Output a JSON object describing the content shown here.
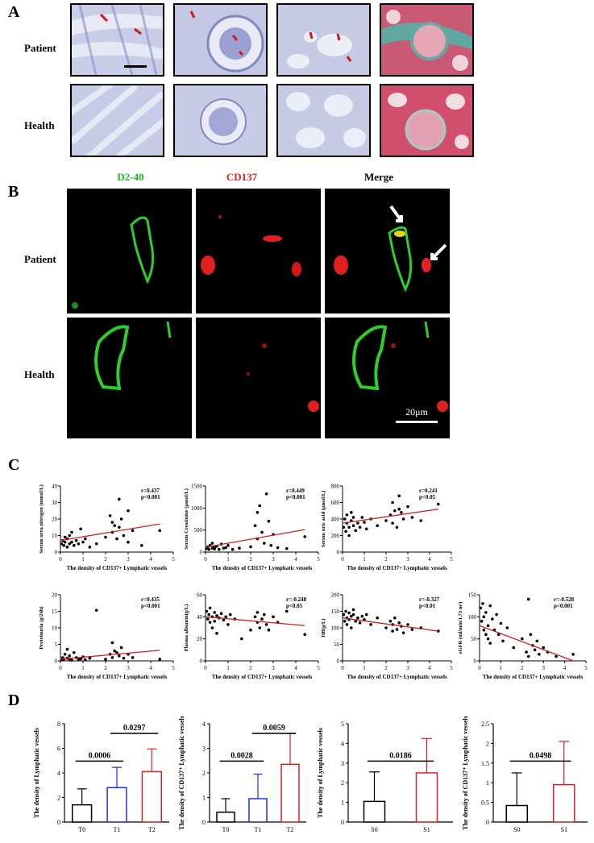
{
  "panel_a": {
    "label": "A",
    "rows": [
      "Patient",
      "Health"
    ]
  },
  "panel_b": {
    "label": "B",
    "columns": [
      {
        "text": "D2-40",
        "color": "#1db51d"
      },
      {
        "text": "CD137",
        "color": "#e01f1f"
      },
      {
        "text": "Merge",
        "color": "#000000"
      }
    ],
    "rows": [
      "Patient",
      "Health"
    ],
    "scale_bar": "20μm"
  },
  "panel_c": {
    "label": "C"
  },
  "panel_d": {
    "label": "D"
  },
  "chart_data": [
    {
      "id": "c1",
      "type": "scatter",
      "ylabel": "Serum urea nitrogen (mmol/L)",
      "xlabel": "The density of CD137+ Lymphatic vessels",
      "xlim": [
        0,
        5
      ],
      "ylim": [
        0,
        40
      ],
      "xticks": [
        0,
        1,
        2,
        3,
        4,
        5
      ],
      "yticks": [
        0,
        10,
        20,
        30,
        40
      ],
      "annotation": [
        "r=0.437",
        "p<0.001"
      ],
      "fit": [
        [
          0,
          7
        ],
        [
          4.4,
          17
        ]
      ],
      "points": [
        [
          0.05,
          5
        ],
        [
          0.1,
          7
        ],
        [
          0.15,
          4
        ],
        [
          0.2,
          9
        ],
        [
          0.2,
          6
        ],
        [
          0.3,
          8
        ],
        [
          0.3,
          3
        ],
        [
          0.4,
          5
        ],
        [
          0.4,
          10
        ],
        [
          0.5,
          6
        ],
        [
          0.5,
          12
        ],
        [
          0.6,
          4
        ],
        [
          0.7,
          7
        ],
        [
          0.8,
          5
        ],
        [
          0.9,
          14
        ],
        [
          1.0,
          6
        ],
        [
          1.1,
          8
        ],
        [
          1.3,
          3
        ],
        [
          1.6,
          5
        ],
        [
          2.0,
          9
        ],
        [
          2.2,
          22
        ],
        [
          2.3,
          18
        ],
        [
          2.3,
          12
        ],
        [
          2.4,
          16
        ],
        [
          2.5,
          8
        ],
        [
          2.6,
          15
        ],
        [
          2.6,
          32
        ],
        [
          2.7,
          20
        ],
        [
          2.8,
          10
        ],
        [
          3.0,
          25
        ],
        [
          3.0,
          6
        ],
        [
          3.2,
          13
        ],
        [
          3.6,
          4
        ],
        [
          4.4,
          13
        ]
      ]
    },
    {
      "id": "c2",
      "type": "scatter",
      "ylabel": "Serum Creatinine (μmol/L)",
      "xlabel": "The density of CD137+ Lymphatic vessels",
      "xlim": [
        0,
        5
      ],
      "ylim": [
        0,
        1500
      ],
      "xticks": [
        0,
        1,
        2,
        3,
        4,
        5
      ],
      "yticks": [
        0,
        500,
        1000,
        1500
      ],
      "annotation": [
        "r=0.449",
        "p<0.001"
      ],
      "fit": [
        [
          0,
          110
        ],
        [
          4.4,
          510
        ]
      ],
      "points": [
        [
          0.05,
          80
        ],
        [
          0.1,
          120
        ],
        [
          0.15,
          60
        ],
        [
          0.2,
          150
        ],
        [
          0.3,
          90
        ],
        [
          0.3,
          200
        ],
        [
          0.4,
          70
        ],
        [
          0.4,
          110
        ],
        [
          0.5,
          130
        ],
        [
          0.6,
          60
        ],
        [
          0.7,
          180
        ],
        [
          0.8,
          90
        ],
        [
          0.9,
          100
        ],
        [
          1.0,
          150
        ],
        [
          1.2,
          60
        ],
        [
          1.5,
          90
        ],
        [
          2.0,
          120
        ],
        [
          2.2,
          600
        ],
        [
          2.3,
          900
        ],
        [
          2.3,
          300
        ],
        [
          2.4,
          1050
        ],
        [
          2.5,
          450
        ],
        [
          2.6,
          200
        ],
        [
          2.7,
          1320
        ],
        [
          2.8,
          700
        ],
        [
          2.9,
          150
        ],
        [
          3.0,
          400
        ],
        [
          3.2,
          100
        ],
        [
          3.6,
          80
        ],
        [
          4.4,
          350
        ]
      ]
    },
    {
      "id": "c3",
      "type": "scatter",
      "ylabel": "Serum uric acid (μmol/L)",
      "xlabel": "The density of CD137+ Lymphatic vessels",
      "xlim": [
        0,
        5
      ],
      "ylim": [
        0,
        800
      ],
      "xticks": [
        0,
        1,
        2,
        3,
        4,
        5
      ],
      "yticks": [
        0,
        200,
        400,
        600,
        800
      ],
      "annotation": [
        "r=0.241",
        "p<0.05"
      ],
      "fit": [
        [
          0,
          350
        ],
        [
          4.4,
          520
        ]
      ],
      "points": [
        [
          0.05,
          300
        ],
        [
          0.1,
          400
        ],
        [
          0.15,
          250
        ],
        [
          0.2,
          350
        ],
        [
          0.2,
          450
        ],
        [
          0.3,
          300
        ],
        [
          0.3,
          200
        ],
        [
          0.4,
          380
        ],
        [
          0.4,
          480
        ],
        [
          0.5,
          320
        ],
        [
          0.5,
          420
        ],
        [
          0.6,
          260
        ],
        [
          0.7,
          350
        ],
        [
          0.8,
          300
        ],
        [
          0.9,
          420
        ],
        [
          1.0,
          360
        ],
        [
          1.1,
          280
        ],
        [
          1.3,
          400
        ],
        [
          1.6,
          320
        ],
        [
          2.0,
          380
        ],
        [
          2.2,
          450
        ],
        [
          2.3,
          600
        ],
        [
          2.3,
          350
        ],
        [
          2.4,
          500
        ],
        [
          2.5,
          300
        ],
        [
          2.6,
          520
        ],
        [
          2.6,
          680
        ],
        [
          2.7,
          480
        ],
        [
          2.8,
          400
        ],
        [
          3.0,
          550
        ],
        [
          3.2,
          420
        ],
        [
          3.6,
          380
        ],
        [
          4.4,
          580
        ]
      ]
    },
    {
      "id": "c4",
      "type": "scatter",
      "ylabel": "Proteinuria (g/24h)",
      "xlabel": "The density of CD137+ Lymphatic vessels",
      "xlim": [
        0,
        5
      ],
      "ylim": [
        0,
        20
      ],
      "xticks": [
        0,
        1,
        2,
        3,
        4,
        5
      ],
      "yticks": [
        0,
        5,
        10,
        15,
        20
      ],
      "annotation": [
        "r=0.435",
        "p<0.001"
      ],
      "fit": [
        [
          0,
          0.5
        ],
        [
          4.4,
          3.2
        ]
      ],
      "points": [
        [
          0.05,
          0.3
        ],
        [
          0.1,
          1.0
        ],
        [
          0.15,
          0.5
        ],
        [
          0.2,
          2.0
        ],
        [
          0.3,
          0.8
        ],
        [
          0.3,
          3.5
        ],
        [
          0.4,
          0.4
        ],
        [
          0.4,
          1.5
        ],
        [
          0.5,
          0.2
        ],
        [
          0.6,
          2.5
        ],
        [
          0.7,
          1.0
        ],
        [
          0.8,
          0.5
        ],
        [
          0.9,
          0.6
        ],
        [
          1.0,
          1.2
        ],
        [
          1.1,
          0.3
        ],
        [
          1.3,
          0.8
        ],
        [
          1.6,
          15.3
        ],
        [
          2.0,
          0.5
        ],
        [
          2.2,
          2.0
        ],
        [
          2.3,
          5.5
        ],
        [
          2.3,
          1.0
        ],
        [
          2.4,
          3.0
        ],
        [
          2.5,
          2.5
        ],
        [
          2.6,
          1.5
        ],
        [
          2.7,
          4.0
        ],
        [
          2.8,
          0.8
        ],
        [
          3.0,
          2.0
        ],
        [
          3.2,
          1.0
        ],
        [
          4.4,
          0.5
        ]
      ]
    },
    {
      "id": "c5",
      "type": "scatter",
      "ylabel": "Plasma albumin(g/L)",
      "xlabel": "The density of CD137+ Lymphatic vessels",
      "xlim": [
        0,
        5
      ],
      "ylim": [
        0,
        60
      ],
      "xticks": [
        0,
        1,
        2,
        3,
        4,
        5
      ],
      "yticks": [
        0,
        20,
        40,
        60
      ],
      "annotation": [
        "r=-0.248",
        "p<0.05"
      ],
      "fit": [
        [
          0,
          40
        ],
        [
          4.4,
          32
        ]
      ],
      "points": [
        [
          0.05,
          45
        ],
        [
          0.1,
          38
        ],
        [
          0.15,
          42
        ],
        [
          0.2,
          35
        ],
        [
          0.2,
          48
        ],
        [
          0.3,
          40
        ],
        [
          0.3,
          30
        ],
        [
          0.4,
          44
        ],
        [
          0.4,
          36
        ],
        [
          0.5,
          41
        ],
        [
          0.5,
          25
        ],
        [
          0.6,
          39
        ],
        [
          0.7,
          43
        ],
        [
          0.8,
          37
        ],
        [
          0.9,
          40
        ],
        [
          1.0,
          33
        ],
        [
          1.1,
          42
        ],
        [
          1.3,
          38
        ],
        [
          1.6,
          20
        ],
        [
          2.0,
          28
        ],
        [
          2.2,
          40
        ],
        [
          2.3,
          35
        ],
        [
          2.3,
          44
        ],
        [
          2.4,
          30
        ],
        [
          2.5,
          38
        ],
        [
          2.6,
          42
        ],
        [
          2.7,
          33
        ],
        [
          2.8,
          28
        ],
        [
          3.0,
          40
        ],
        [
          3.2,
          35
        ],
        [
          3.6,
          45
        ],
        [
          4.4,
          24
        ]
      ]
    },
    {
      "id": "c6",
      "type": "scatter",
      "ylabel": "HB(g/L)",
      "xlabel": "The density of CD137+ Lymphatic vessels",
      "xlim": [
        0,
        5
      ],
      "ylim": [
        0,
        200
      ],
      "xticks": [
        0,
        1,
        2,
        3,
        4,
        5
      ],
      "yticks": [
        0,
        50,
        100,
        150,
        200
      ],
      "annotation": [
        "r=-0.327",
        "p<0.01"
      ],
      "fit": [
        [
          0,
          130
        ],
        [
          4.4,
          90
        ]
      ],
      "points": [
        [
          0.05,
          140
        ],
        [
          0.1,
          120
        ],
        [
          0.15,
          150
        ],
        [
          0.2,
          130
        ],
        [
          0.2,
          110
        ],
        [
          0.3,
          145
        ],
        [
          0.3,
          125
        ],
        [
          0.4,
          135
        ],
        [
          0.4,
          100
        ],
        [
          0.5,
          140
        ],
        [
          0.5,
          155
        ],
        [
          0.6,
          120
        ],
        [
          0.7,
          130
        ],
        [
          0.8,
          115
        ],
        [
          0.9,
          135
        ],
        [
          1.0,
          125
        ],
        [
          1.1,
          140
        ],
        [
          1.3,
          110
        ],
        [
          1.6,
          130
        ],
        [
          2.0,
          100
        ],
        [
          2.2,
          120
        ],
        [
          2.3,
          90
        ],
        [
          2.3,
          110
        ],
        [
          2.4,
          130
        ],
        [
          2.5,
          95
        ],
        [
          2.6,
          115
        ],
        [
          2.7,
          105
        ],
        [
          2.8,
          85
        ],
        [
          3.0,
          110
        ],
        [
          3.2,
          95
        ],
        [
          3.6,
          100
        ],
        [
          4.4,
          90
        ]
      ]
    },
    {
      "id": "c7",
      "type": "scatter",
      "ylabel": "eGFR (ml/min/1.73 m²)",
      "xlabel": "The density of CD137+ Lymphatic vessels",
      "xlim": [
        0,
        5
      ],
      "ylim": [
        0,
        150
      ],
      "xticks": [
        0,
        1,
        2,
        3,
        4,
        5
      ],
      "yticks": [
        0,
        50,
        100,
        150
      ],
      "annotation": [
        "r=-0.528",
        "p<0.001"
      ],
      "fit": [
        [
          0,
          80
        ],
        [
          4.4,
          0
        ]
      ],
      "points": [
        [
          0.05,
          120
        ],
        [
          0.1,
          90
        ],
        [
          0.15,
          130
        ],
        [
          0.2,
          70
        ],
        [
          0.2,
          100
        ],
        [
          0.3,
          60
        ],
        [
          0.3,
          110
        ],
        [
          0.4,
          80
        ],
        [
          0.4,
          50
        ],
        [
          0.5,
          125
        ],
        [
          0.5,
          40
        ],
        [
          0.6,
          95
        ],
        [
          0.7,
          70
        ],
        [
          0.8,
          105
        ],
        [
          0.9,
          60
        ],
        [
          1.0,
          85
        ],
        [
          1.1,
          45
        ],
        [
          1.3,
          75
        ],
        [
          1.6,
          30
        ],
        [
          2.0,
          50
        ],
        [
          2.2,
          20
        ],
        [
          2.3,
          140
        ],
        [
          2.3,
          10
        ],
        [
          2.4,
          60
        ],
        [
          2.5,
          35
        ],
        [
          2.6,
          25
        ],
        [
          2.7,
          45
        ],
        [
          2.8,
          15
        ],
        [
          3.0,
          30
        ],
        [
          3.2,
          20
        ],
        [
          3.6,
          10
        ],
        [
          4.4,
          15
        ]
      ]
    },
    {
      "id": "d1",
      "type": "bar",
      "ylabel": "The density of Lymphatic vessels",
      "categories": [
        "T0",
        "T1",
        "T2"
      ],
      "values": [
        1.4,
        2.8,
        4.1
      ],
      "errors": [
        1.3,
        1.65,
        1.85
      ],
      "colors": [
        "#000000",
        "#1f2fd6",
        "#e01f1f"
      ],
      "ylim": [
        0,
        8
      ],
      "yticks": [
        0,
        2,
        4,
        6,
        8
      ],
      "comparisons": [
        {
          "from": 0,
          "to": 1,
          "label": "0.0006",
          "level": 0
        },
        {
          "from": 1,
          "to": 2,
          "label": "0.0297",
          "level": 1
        }
      ]
    },
    {
      "id": "d2",
      "type": "bar",
      "ylabel": "The density of CD137⁺ Lymphatic vessels",
      "categories": [
        "T0",
        "T1",
        "T2"
      ],
      "values": [
        0.4,
        0.95,
        2.35
      ],
      "errors": [
        0.55,
        1.0,
        1.25
      ],
      "colors": [
        "#000000",
        "#1f2fd6",
        "#e01f1f"
      ],
      "ylim": [
        0,
        4
      ],
      "yticks": [
        0,
        1,
        2,
        3,
        4
      ],
      "comparisons": [
        {
          "from": 0,
          "to": 1,
          "label": "0.0028",
          "level": 0
        },
        {
          "from": 1,
          "to": 2,
          "label": "0.0059",
          "level": 1
        }
      ]
    },
    {
      "id": "d3",
      "type": "bar",
      "ylabel": "The density of Lymphatic vessels",
      "categories": [
        "S0",
        "S1"
      ],
      "values": [
        1.05,
        2.5
      ],
      "errors": [
        1.5,
        1.75
      ],
      "colors": [
        "#000000",
        "#e01f1f"
      ],
      "ylim": [
        0,
        5
      ],
      "yticks": [
        0,
        1,
        2,
        3,
        4,
        5
      ],
      "comparisons": [
        {
          "from": 0,
          "to": 1,
          "label": "0.0186",
          "level": 0
        }
      ]
    },
    {
      "id": "d4",
      "type": "bar",
      "ylabel": "The density of CD137⁺ Lymphatic vessels",
      "categories": [
        "S0",
        "S1"
      ],
      "values": [
        0.42,
        0.95
      ],
      "errors": [
        0.83,
        1.1
      ],
      "colors": [
        "#000000",
        "#e01f1f"
      ],
      "ylim": [
        0,
        2.5
      ],
      "yticks": [
        0,
        0.5,
        1.0,
        1.5,
        2.0,
        2.5
      ],
      "comparisons": [
        {
          "from": 0,
          "to": 1,
          "label": "0.0498",
          "level": 0
        }
      ]
    }
  ]
}
